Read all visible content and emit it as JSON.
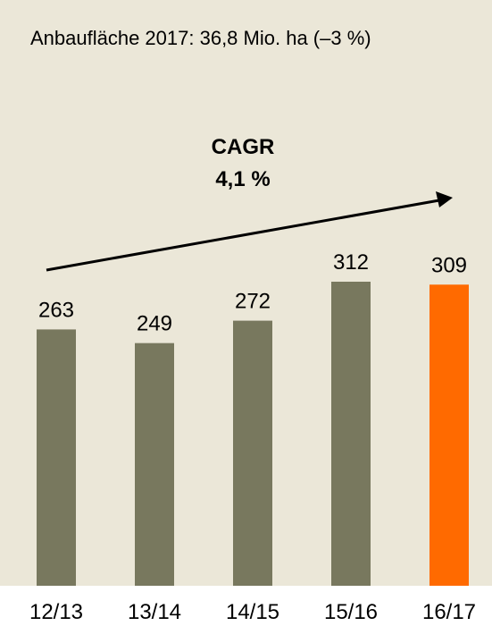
{
  "colors": {
    "panel_background": "#ebe7d8",
    "bar_default": "#78785e",
    "bar_highlight": "#ff6a00",
    "arrow": "#000000"
  },
  "subtitle": "Anbaufläche 2017: 36,8 Mio. ha (–3 %)",
  "annotation": {
    "line1": "CAGR",
    "line2": "4,1 %"
  },
  "chart_data": {
    "type": "bar",
    "categories": [
      "12/13",
      "13/14",
      "14/15",
      "15/16",
      "16/17"
    ],
    "values": [
      263,
      249,
      272,
      312,
      309
    ],
    "value_labels": [
      "263",
      "249",
      "272",
      "312",
      "309"
    ],
    "highlight_index": 4,
    "title": "",
    "xlabel": "",
    "ylabel": "",
    "ylim": [
      0,
      312
    ],
    "grid": false,
    "legend": "none",
    "trend_arrow": true
  }
}
